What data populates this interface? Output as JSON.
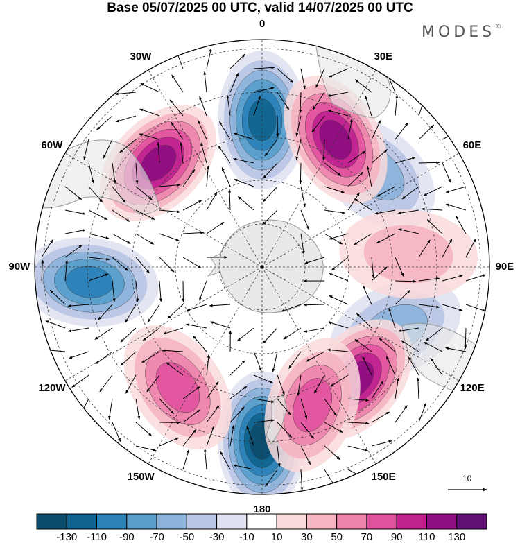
{
  "title": "Base 05/07/2025 00 UTC, valid 14/07/2025 00 UTC",
  "brand": "MODES",
  "brand_mark": "©",
  "longitude_labels": [
    {
      "text": "0",
      "lon": 0
    },
    {
      "text": "30E",
      "lon": 30
    },
    {
      "text": "60E",
      "lon": 60
    },
    {
      "text": "90E",
      "lon": 90
    },
    {
      "text": "120E",
      "lon": 120
    },
    {
      "text": "150E",
      "lon": 150
    },
    {
      "text": "180",
      "lon": 180
    },
    {
      "text": "150W",
      "lon": -150
    },
    {
      "text": "120W",
      "lon": -120
    },
    {
      "text": "90W",
      "lon": -90
    },
    {
      "text": "60W",
      "lon": -60
    },
    {
      "text": "30W",
      "lon": -30
    }
  ],
  "vector_scale_label": "10",
  "colorbar": {
    "labels": [
      "-130",
      "-110",
      "-90",
      "-70",
      "-50",
      "-30",
      "-10",
      "10",
      "30",
      "50",
      "70",
      "90",
      "110",
      "130"
    ],
    "colors": [
      "#0c4d6e",
      "#11648f",
      "#2b83b8",
      "#5a9fcc",
      "#8cb4db",
      "#b9c6e4",
      "#dfe0f0",
      "#ffffff",
      "#f9dada",
      "#f5b5c3",
      "#ee85ad",
      "#e0549e",
      "#c02390",
      "#8f0e82",
      "#5f1075"
    ]
  },
  "anomaly_centers": [
    {
      "sign": "negative",
      "level": -130,
      "lon": 180
    },
    {
      "sign": "negative",
      "level": -110,
      "lon": 0
    },
    {
      "sign": "negative",
      "level": -90,
      "lon": -95
    },
    {
      "sign": "negative",
      "level": -50,
      "lon": 115
    },
    {
      "sign": "negative",
      "level": -50,
      "lon": 50
    },
    {
      "sign": "positive",
      "level": 110,
      "lon": -45
    },
    {
      "sign": "positive",
      "level": 110,
      "lon": 30
    },
    {
      "sign": "positive",
      "level": 110,
      "lon": 140
    },
    {
      "sign": "positive",
      "level": 70,
      "lon": -145
    },
    {
      "sign": "positive",
      "level": 70,
      "lon": 160
    },
    {
      "sign": "positive",
      "level": 30,
      "lon": 85
    }
  ]
}
